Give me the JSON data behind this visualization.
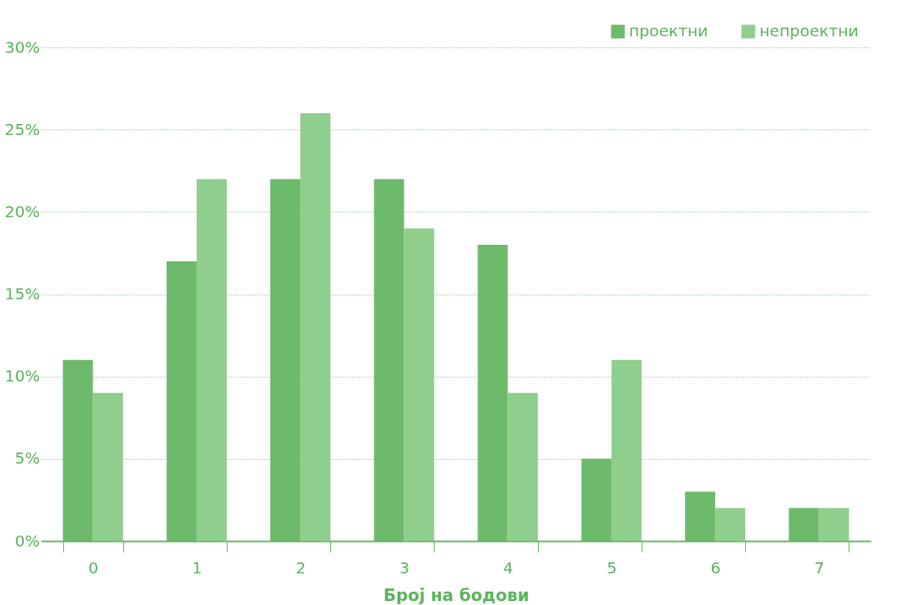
{
  "chart_data": {
    "type": "bar",
    "xlabel": "Број на бодови",
    "categories": [
      "0",
      "1",
      "2",
      "3",
      "4",
      "5",
      "6",
      "7"
    ],
    "series": [
      {
        "name": "проектни",
        "color": "#6dbb6a",
        "values": [
          11,
          17,
          22,
          22,
          18,
          5,
          3,
          2
        ]
      },
      {
        "name": "непроектни",
        "color": "#8fce8c",
        "values": [
          9,
          22,
          26,
          19,
          9,
          11,
          2,
          2
        ]
      }
    ],
    "ylim": [
      0,
      30
    ],
    "yticks": [
      {
        "value": 0,
        "label": "0%"
      },
      {
        "value": 5,
        "label": "5%"
      },
      {
        "value": 10,
        "label": "10%"
      },
      {
        "value": 15,
        "label": "15%"
      },
      {
        "value": 20,
        "label": "20%"
      },
      {
        "value": 25,
        "label": "25%"
      },
      {
        "value": 30,
        "label": "30%"
      }
    ],
    "grid": "y",
    "legend": "top right"
  }
}
